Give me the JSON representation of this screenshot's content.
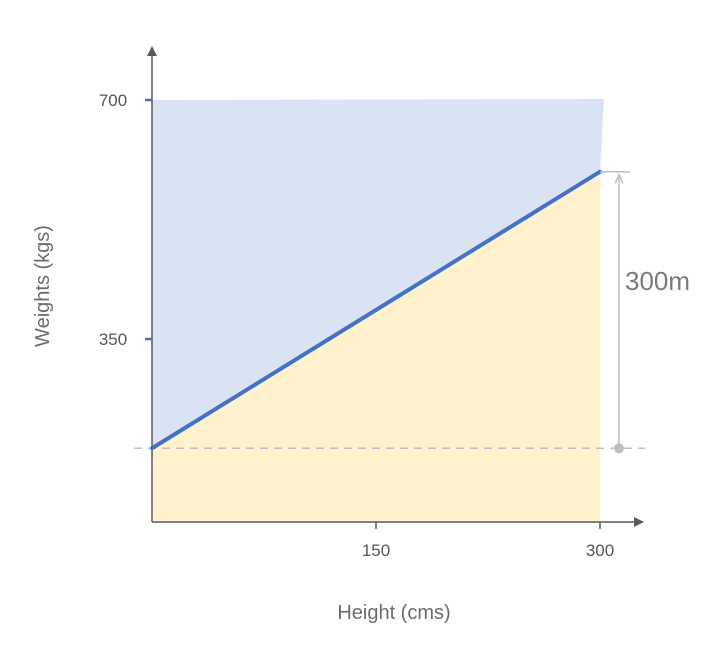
{
  "chart_data": {
    "type": "area",
    "xlabel": "Height (cms)",
    "ylabel": "Weights (kgs)",
    "x_ticks": [
      150,
      300
    ],
    "y_ticks": [
      350,
      700
    ],
    "xlim": [
      0,
      300
    ],
    "ylim": [
      0,
      700
    ],
    "series": [
      {
        "x": [
          0,
          300
        ],
        "y": [
          190,
          595
        ]
      }
    ],
    "baseline_y": 190,
    "annotations": [
      {
        "text": "300m",
        "from_y": 190,
        "to_y": 595
      }
    ],
    "grid": false,
    "colors": {
      "line": "#4472c4",
      "upper_fill": "#dae3f3",
      "lower_fill": "#fff2cc",
      "axis": "#595959",
      "tick_mark": "#4472c4",
      "guide": "#bfbfbf"
    }
  }
}
